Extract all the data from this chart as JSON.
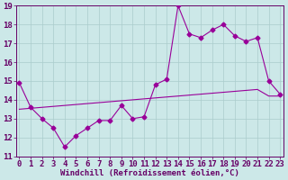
{
  "xlabel": "Windchill (Refroidissement éolien,°C)",
  "ylabel": "",
  "xlim": [
    0,
    23
  ],
  "ylim": [
    11,
    19
  ],
  "xticks": [
    0,
    1,
    2,
    3,
    4,
    5,
    6,
    7,
    8,
    9,
    10,
    11,
    12,
    13,
    14,
    15,
    16,
    17,
    18,
    19,
    20,
    21,
    22,
    23
  ],
  "yticks": [
    11,
    12,
    13,
    14,
    15,
    16,
    17,
    18,
    19
  ],
  "x": [
    0,
    1,
    2,
    3,
    4,
    5,
    6,
    7,
    8,
    9,
    10,
    11,
    12,
    13,
    14,
    15,
    16,
    17,
    18,
    19,
    20,
    21,
    22,
    23
  ],
  "y_data": [
    14.9,
    13.6,
    13.0,
    12.5,
    11.5,
    12.1,
    12.5,
    12.9,
    12.9,
    13.7,
    13.0,
    13.1,
    14.8,
    15.1,
    19.0,
    17.5,
    17.3,
    17.7,
    18.0,
    17.4,
    17.1,
    17.3,
    15.0,
    14.3
  ],
  "y_trend": [
    13.5,
    13.55,
    13.6,
    13.65,
    13.7,
    13.75,
    13.8,
    13.85,
    13.9,
    13.95,
    14.0,
    14.05,
    14.1,
    14.15,
    14.2,
    14.25,
    14.3,
    14.35,
    14.4,
    14.45,
    14.5,
    14.55,
    14.2,
    14.2
  ],
  "line_color": "#990099",
  "bg_color": "#cce8e8",
  "grid_color": "#aacccc",
  "tick_color": "#660066",
  "label_color": "#660066",
  "font_size": 6.5,
  "marker_size": 2.5
}
